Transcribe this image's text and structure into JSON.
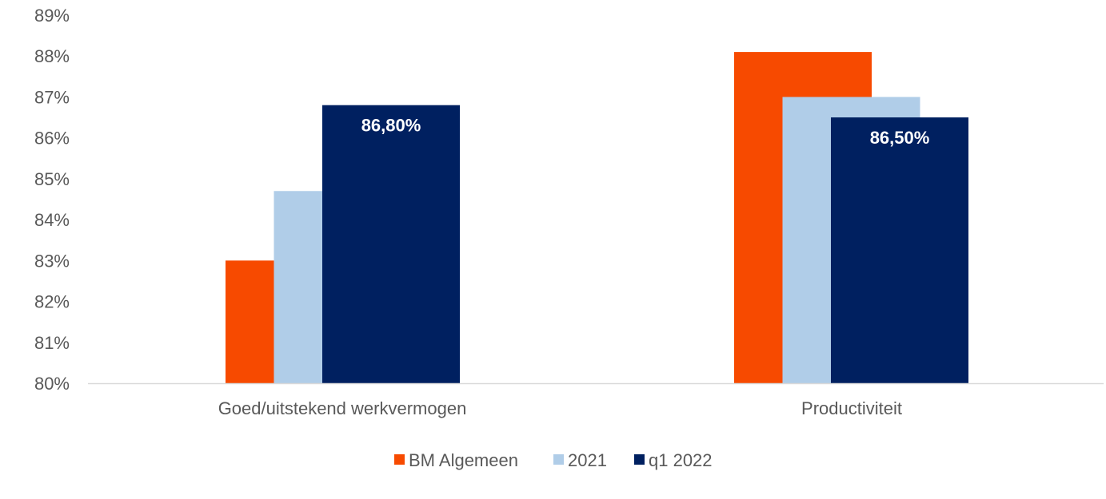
{
  "chart_data": {
    "type": "bar",
    "title": "",
    "xlabel": "",
    "ylabel": "",
    "ylim": [
      80,
      89
    ],
    "yticks": [
      80,
      81,
      82,
      83,
      84,
      85,
      86,
      87,
      88,
      89
    ],
    "ytick_labels": [
      "80%",
      "81%",
      "82%",
      "83%",
      "84%",
      "85%",
      "86%",
      "87%",
      "88%",
      "89%"
    ],
    "grid": false,
    "categories": [
      "Goed/uitstekend werkvermogen",
      "Productiviteit"
    ],
    "series": [
      {
        "name": "BM Algemeen",
        "color": "#F74A00",
        "values": [
          83.0,
          88.1
        ],
        "data_labels": [
          null,
          null
        ]
      },
      {
        "name": "2021",
        "color": "#B0CDE8",
        "values": [
          84.7,
          87.0
        ],
        "data_labels": [
          null,
          null
        ]
      },
      {
        "name": "q1 2022",
        "color": "#002060",
        "values": [
          86.8,
          86.5
        ],
        "data_labels": [
          "86,80%",
          "86,50%"
        ]
      }
    ],
    "legend": {
      "position": "bottom-center"
    },
    "bar_overlap": true
  }
}
